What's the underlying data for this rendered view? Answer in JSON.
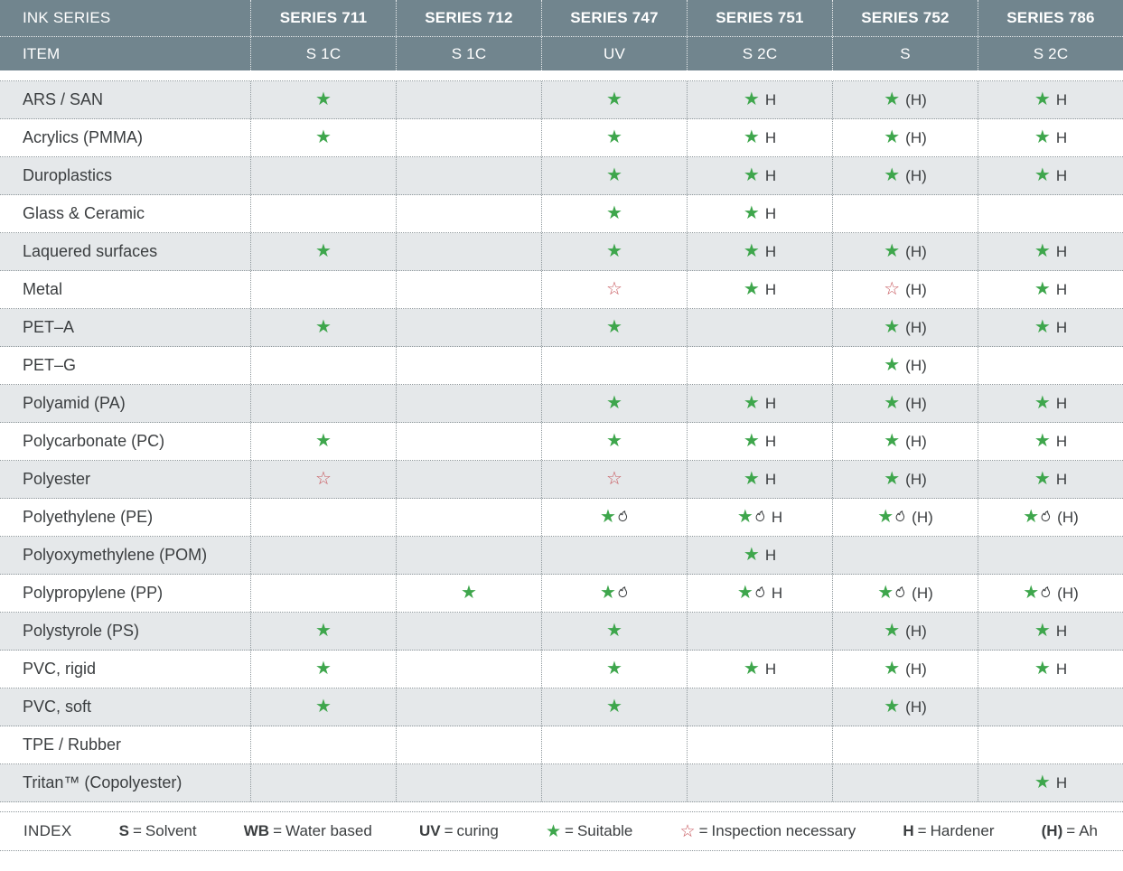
{
  "table": {
    "header": {
      "row1_label": "INK SERIES",
      "row2_label": "ITEM",
      "series": [
        {
          "name": "SERIES 711",
          "type": "S 1C"
        },
        {
          "name": "SERIES 712",
          "type": "S 1C"
        },
        {
          "name": "SERIES 747",
          "type": "UV"
        },
        {
          "name": "SERIES 751",
          "type": "S 2C"
        },
        {
          "name": "SERIES 752",
          "type": "S"
        },
        {
          "name": "SERIES 786",
          "type": "S 2C"
        }
      ]
    },
    "rows": [
      {
        "label": "ARS / SAN",
        "cells": [
          "★",
          "",
          "★",
          "★ H",
          "★ (H)",
          "★ H"
        ]
      },
      {
        "label": "Acrylics (PMMA)",
        "cells": [
          "★",
          "",
          "★",
          "★ H",
          "★ (H)",
          "★ H"
        ]
      },
      {
        "label": "Duroplastics",
        "cells": [
          "",
          "",
          "★",
          "★ H",
          "★ (H)",
          "★ H"
        ]
      },
      {
        "label": "Glass & Ceramic",
        "cells": [
          "",
          "",
          "★",
          "★ H",
          "",
          ""
        ]
      },
      {
        "label": "Laquered surfaces",
        "cells": [
          "★",
          "",
          "★",
          "★ H",
          "★ (H)",
          "★ H"
        ]
      },
      {
        "label": "Metal",
        "cells": [
          "",
          "",
          "☆",
          "★ H",
          "☆ (H)",
          "★ H"
        ]
      },
      {
        "label": "PET–A",
        "cells": [
          "★",
          "",
          "★",
          "",
          "★ (H)",
          "★ H"
        ]
      },
      {
        "label": "PET–G",
        "cells": [
          "",
          "",
          "",
          "",
          "★ (H)",
          ""
        ]
      },
      {
        "label": "Polyamid (PA)",
        "cells": [
          "",
          "",
          "★",
          "★ H",
          "★ (H)",
          "★ H"
        ]
      },
      {
        "label": "Polycarbonate (PC)",
        "cells": [
          "★",
          "",
          "★",
          "★ H",
          "★ (H)",
          "★ H"
        ]
      },
      {
        "label": "Polyester",
        "cells": [
          "☆",
          "",
          "☆",
          "★ H",
          "★ (H)",
          "★ H"
        ]
      },
      {
        "label": "Polyethylene (PE)",
        "cells": [
          "",
          "",
          "★🔥",
          "★🔥 H",
          "★🔥 (H)",
          "★🔥 (H)"
        ]
      },
      {
        "label": "Polyoxymethylene (POM)",
        "cells": [
          "",
          "",
          "",
          "★ H",
          "",
          ""
        ]
      },
      {
        "label": "Polypropylene (PP)",
        "cells": [
          "",
          "★",
          "★🔥",
          "★🔥 H",
          "★🔥 (H)",
          "★🔥 (H)"
        ]
      },
      {
        "label": "Polystyrole (PS)",
        "cells": [
          "★",
          "",
          "★",
          "",
          "★ (H)",
          "★ H"
        ]
      },
      {
        "label": "PVC, rigid",
        "cells": [
          "★",
          "",
          "★",
          "★ H",
          "★ (H)",
          "★ H"
        ]
      },
      {
        "label": "PVC, soft",
        "cells": [
          "★",
          "",
          "★",
          "",
          "★ (H)",
          ""
        ]
      },
      {
        "label": "TPE / Rubber",
        "cells": [
          "",
          "",
          "",
          "",
          "",
          ""
        ]
      },
      {
        "label": "Tritan™ (Copolyester)",
        "cells": [
          "",
          "",
          "",
          "",
          "",
          "★ H"
        ]
      }
    ]
  },
  "legend": {
    "title": "INDEX",
    "items": [
      {
        "key": "S",
        "value": "Solvent"
      },
      {
        "key": "WB",
        "value": "Water based"
      },
      {
        "key": "UV",
        "value": "curing"
      },
      {
        "key": "★",
        "value": "Suitable"
      },
      {
        "key": "☆",
        "value": "Inspection necessary"
      },
      {
        "key": "H",
        "value": "Hardener"
      },
      {
        "key": "(H)",
        "value": "Ah"
      }
    ]
  },
  "icons": {
    "suitable": "green-filled-star",
    "inspection": "red-outline-star",
    "pretreatment": "flame-outline"
  },
  "colors": {
    "header_bg": "#71858E",
    "header_text": "#FFFFFF",
    "row_shaded": "#E5E8EA",
    "row_white": "#FFFFFF",
    "border": "#8F989C",
    "text": "#3B3E40",
    "star_green": "#3EA64C",
    "star_red": "#C7565C"
  }
}
